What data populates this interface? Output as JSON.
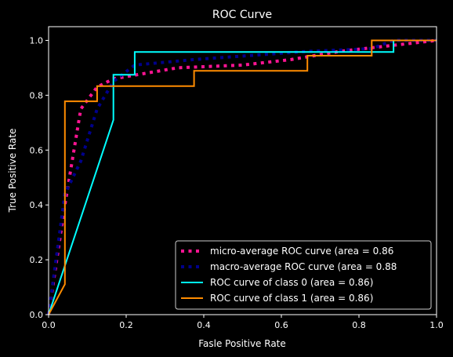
{
  "chart_data": {
    "type": "line",
    "title": "ROC Curve",
    "xlabel": "Fasle Positive Rate",
    "ylabel": "True Positive Rate",
    "xlim": [
      0.0,
      1.0
    ],
    "ylim": [
      0.0,
      1.05
    ],
    "xticks": [
      "0.0",
      "0.2",
      "0.4",
      "0.6",
      "0.8",
      "1.0"
    ],
    "yticks": [
      "0.0",
      "0.2",
      "0.4",
      "0.6",
      "0.8",
      "1.0"
    ],
    "grid": false,
    "legend_position": "lower-right",
    "series": [
      {
        "name": "micro-average ROC curve (area = 0.86",
        "color": "#ff1493",
        "style": "dotted",
        "x": [
          0.0,
          0.042,
          0.083,
          0.125,
          0.167,
          0.25,
          0.333,
          0.5,
          0.625,
          0.75,
          0.875,
          1.0
        ],
        "y": [
          0.0,
          0.4,
          0.75,
          0.83,
          0.86,
          0.88,
          0.9,
          0.91,
          0.93,
          0.96,
          0.98,
          1.0
        ]
      },
      {
        "name": "macro-average ROC curve (area = 0.88",
        "color": "#00008b",
        "style": "dotted",
        "x": [
          0.0,
          0.042,
          0.083,
          0.125,
          0.167,
          0.222,
          0.375,
          0.667,
          0.833,
          0.889,
          1.0
        ],
        "y": [
          0.0,
          0.44,
          0.56,
          0.75,
          0.85,
          0.91,
          0.93,
          0.96,
          0.97,
          1.0,
          1.0
        ]
      },
      {
        "name": "ROC curve of class 0 (area = 0.86)",
        "color": "#00ffff",
        "style": "solid",
        "x": [
          0.0,
          0.167,
          0.167,
          0.222,
          0.222,
          0.889,
          0.889,
          1.0
        ],
        "y": [
          0.0,
          0.71,
          0.875,
          0.875,
          0.958,
          0.958,
          1.0,
          1.0
        ]
      },
      {
        "name": "ROC curve of class 1 (area = 0.86)",
        "color": "#ff8c00",
        "style": "solid",
        "x": [
          0.0,
          0.042,
          0.042,
          0.125,
          0.125,
          0.375,
          0.375,
          0.667,
          0.667,
          0.833,
          0.833,
          1.0
        ],
        "y": [
          0.0,
          0.111,
          0.778,
          0.778,
          0.833,
          0.833,
          0.889,
          0.889,
          0.944,
          0.944,
          1.0,
          1.0
        ]
      }
    ]
  }
}
